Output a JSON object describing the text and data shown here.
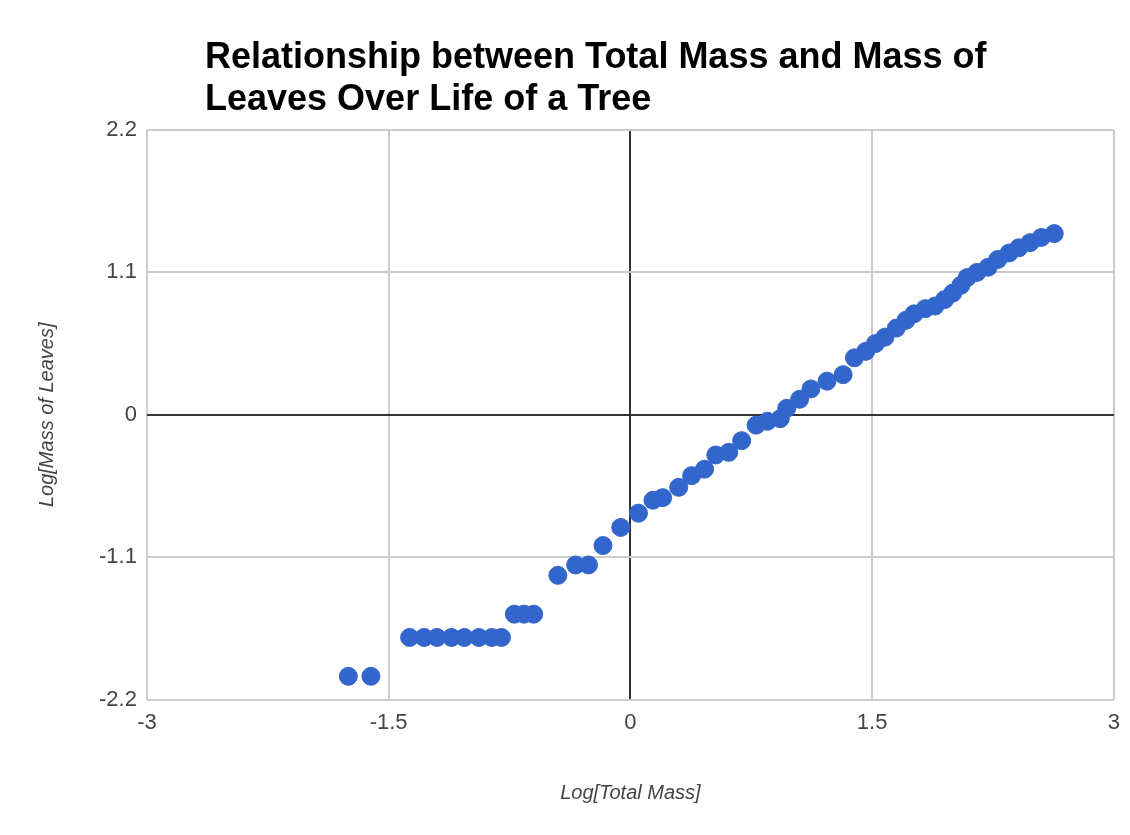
{
  "chart_data": {
    "type": "scatter",
    "title": "Relationship between Total Mass and Mass of Leaves Over Life of a Tree",
    "xlabel": "Log[Total Mass]",
    "ylabel": "Log[Mass of Leaves]",
    "xlim": [
      -3,
      3
    ],
    "xticks": [
      -3,
      -1.5,
      0,
      1.5,
      3
    ],
    "ylim": [
      -2.2,
      2.2
    ],
    "yticks": [
      -2.2,
      -1.1,
      0,
      1.1,
      2.2
    ],
    "grid": true,
    "legend": false,
    "marker": "circle",
    "series": [
      {
        "color": "#3366cc",
        "x": [
          -1.75,
          -1.61,
          -1.37,
          -1.28,
          -1.2,
          -1.11,
          -1.03,
          -0.94,
          -0.86,
          -0.8,
          -0.72,
          -0.66,
          -0.6,
          -0.45,
          -0.34,
          -0.26,
          -0.17,
          -0.06,
          0.05,
          0.14,
          0.2,
          0.3,
          0.38,
          0.46,
          0.53,
          0.61,
          0.69,
          0.78,
          0.85,
          0.93,
          0.97,
          1.05,
          1.12,
          1.22,
          1.32,
          1.39,
          1.46,
          1.52,
          1.58,
          1.65,
          1.71,
          1.76,
          1.83,
          1.89,
          1.95,
          2.0,
          2.05,
          2.09,
          2.15,
          2.22,
          2.28,
          2.35,
          2.41,
          2.48,
          2.55,
          2.63
        ],
        "values": [
          -2.02,
          -2.02,
          -1.72,
          -1.72,
          -1.72,
          -1.72,
          -1.72,
          -1.72,
          -1.72,
          -1.72,
          -1.54,
          -1.54,
          -1.54,
          -1.24,
          -1.16,
          -1.16,
          -1.01,
          -0.87,
          -0.76,
          -0.66,
          -0.64,
          -0.56,
          -0.47,
          -0.42,
          -0.31,
          -0.29,
          -0.2,
          -0.08,
          -0.05,
          -0.03,
          0.05,
          0.12,
          0.2,
          0.26,
          0.31,
          0.44,
          0.49,
          0.55,
          0.6,
          0.67,
          0.73,
          0.78,
          0.82,
          0.84,
          0.89,
          0.94,
          1.0,
          1.06,
          1.1,
          1.14,
          1.2,
          1.25,
          1.29,
          1.33,
          1.37,
          1.4
        ]
      }
    ]
  }
}
